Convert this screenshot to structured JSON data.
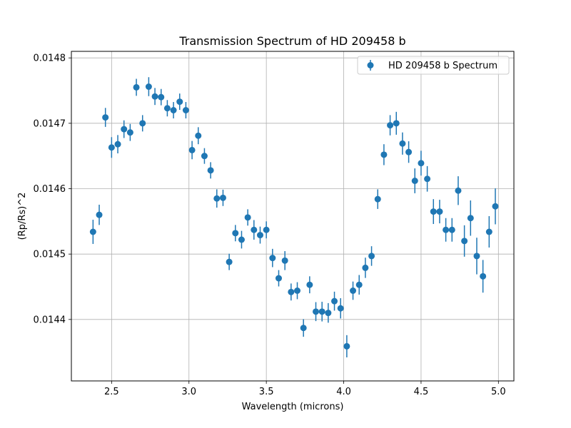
{
  "chart_data": {
    "type": "scatter",
    "title": "Transmission Spectrum of HD 209458 b",
    "xlabel": "Wavelength (microns)",
    "ylabel": "(Rp/Rs)^2",
    "xlim": [
      2.24,
      5.1
    ],
    "ylim": [
      0.014306,
      0.01481
    ],
    "xticks": [
      2.5,
      3.0,
      3.5,
      4.0,
      4.5,
      5.0
    ],
    "xtick_labels": [
      "2.5",
      "3.0",
      "3.5",
      "4.0",
      "4.5",
      "5.0"
    ],
    "yticks": [
      0.0144,
      0.0145,
      0.0146,
      0.0147,
      0.0148
    ],
    "ytick_labels": [
      "0.0144",
      "0.0145",
      "0.0146",
      "0.0147",
      "0.0148"
    ],
    "grid": true,
    "legend_position": "top-right",
    "color": "#1f77b4",
    "series": [
      {
        "name": "HD 209458 b Spectrum",
        "marker": "circle",
        "error_bars": true,
        "x": [
          2.38,
          2.42,
          2.46,
          2.5,
          2.54,
          2.58,
          2.62,
          2.66,
          2.7,
          2.74,
          2.78,
          2.82,
          2.86,
          2.9,
          2.94,
          2.98,
          3.02,
          3.06,
          3.1,
          3.14,
          3.18,
          3.22,
          3.26,
          3.3,
          3.34,
          3.38,
          3.42,
          3.46,
          3.5,
          3.54,
          3.58,
          3.62,
          3.66,
          3.7,
          3.74,
          3.78,
          3.82,
          3.86,
          3.9,
          3.94,
          3.98,
          4.02,
          4.06,
          4.1,
          4.14,
          4.18,
          4.22,
          4.26,
          4.3,
          4.34,
          4.38,
          4.42,
          4.46,
          4.5,
          4.54,
          4.58,
          4.62,
          4.66,
          4.7,
          4.74,
          4.78,
          4.82,
          4.86,
          4.9,
          4.94,
          4.98
        ],
        "y": [
          0.014534,
          0.01456,
          0.014709,
          0.014663,
          0.014668,
          0.014691,
          0.014686,
          0.014755,
          0.0147,
          0.014756,
          0.014741,
          0.01474,
          0.014723,
          0.01472,
          0.014733,
          0.01472,
          0.014659,
          0.014681,
          0.01465,
          0.014628,
          0.014585,
          0.014586,
          0.014488,
          0.014532,
          0.014522,
          0.014556,
          0.014537,
          0.014529,
          0.014537,
          0.014494,
          0.014463,
          0.01449,
          0.014442,
          0.014444,
          0.014387,
          0.014453,
          0.014412,
          0.014412,
          0.01441,
          0.014428,
          0.014417,
          0.014359,
          0.014444,
          0.014453,
          0.014479,
          0.014497,
          0.014584,
          0.014652,
          0.014697,
          0.0147,
          0.014669,
          0.014656,
          0.014612,
          0.014639,
          0.014615,
          0.014565,
          0.014565,
          0.014537,
          0.014537,
          0.014597,
          0.01452,
          0.014555,
          0.014497,
          0.014466,
          0.014534,
          0.014573
        ],
        "yerr": [
          1.85e-05,
          1.55e-05,
          1.45e-05,
          1.58e-05,
          1.4e-05,
          1.35e-05,
          1.3e-05,
          1.3e-05,
          1.25e-05,
          1.45e-05,
          1.3e-05,
          1.25e-05,
          1.25e-05,
          1.25e-05,
          1.25e-05,
          1.25e-05,
          1.4e-05,
          1.3e-05,
          1.2e-05,
          1.25e-05,
          1.4e-05,
          1.25e-05,
          1.25e-05,
          1.25e-05,
          1.35e-05,
          1.25e-05,
          1.5e-05,
          1.3e-05,
          1.3e-05,
          1.4e-05,
          1.25e-05,
          1.45e-05,
          1.3e-05,
          1.3e-05,
          1.35e-05,
          1.3e-05,
          1.45e-05,
          1.5e-05,
          1.5e-05,
          1.45e-05,
          1.55e-05,
          1.7e-05,
          1.4e-05,
          1.5e-05,
          1.55e-05,
          1.5e-05,
          1.5e-05,
          1.6e-05,
          1.55e-05,
          1.75e-05,
          1.7e-05,
          1.65e-05,
          1.9e-05,
          1.9e-05,
          1.95e-05,
          1.9e-05,
          1.8e-05,
          1.8e-05,
          1.8e-05,
          2.2e-05,
          2.4e-05,
          2.7e-05,
          2.8e-05,
          2.5e-05,
          2.4e-05,
          2.75e-05
        ]
      }
    ]
  }
}
